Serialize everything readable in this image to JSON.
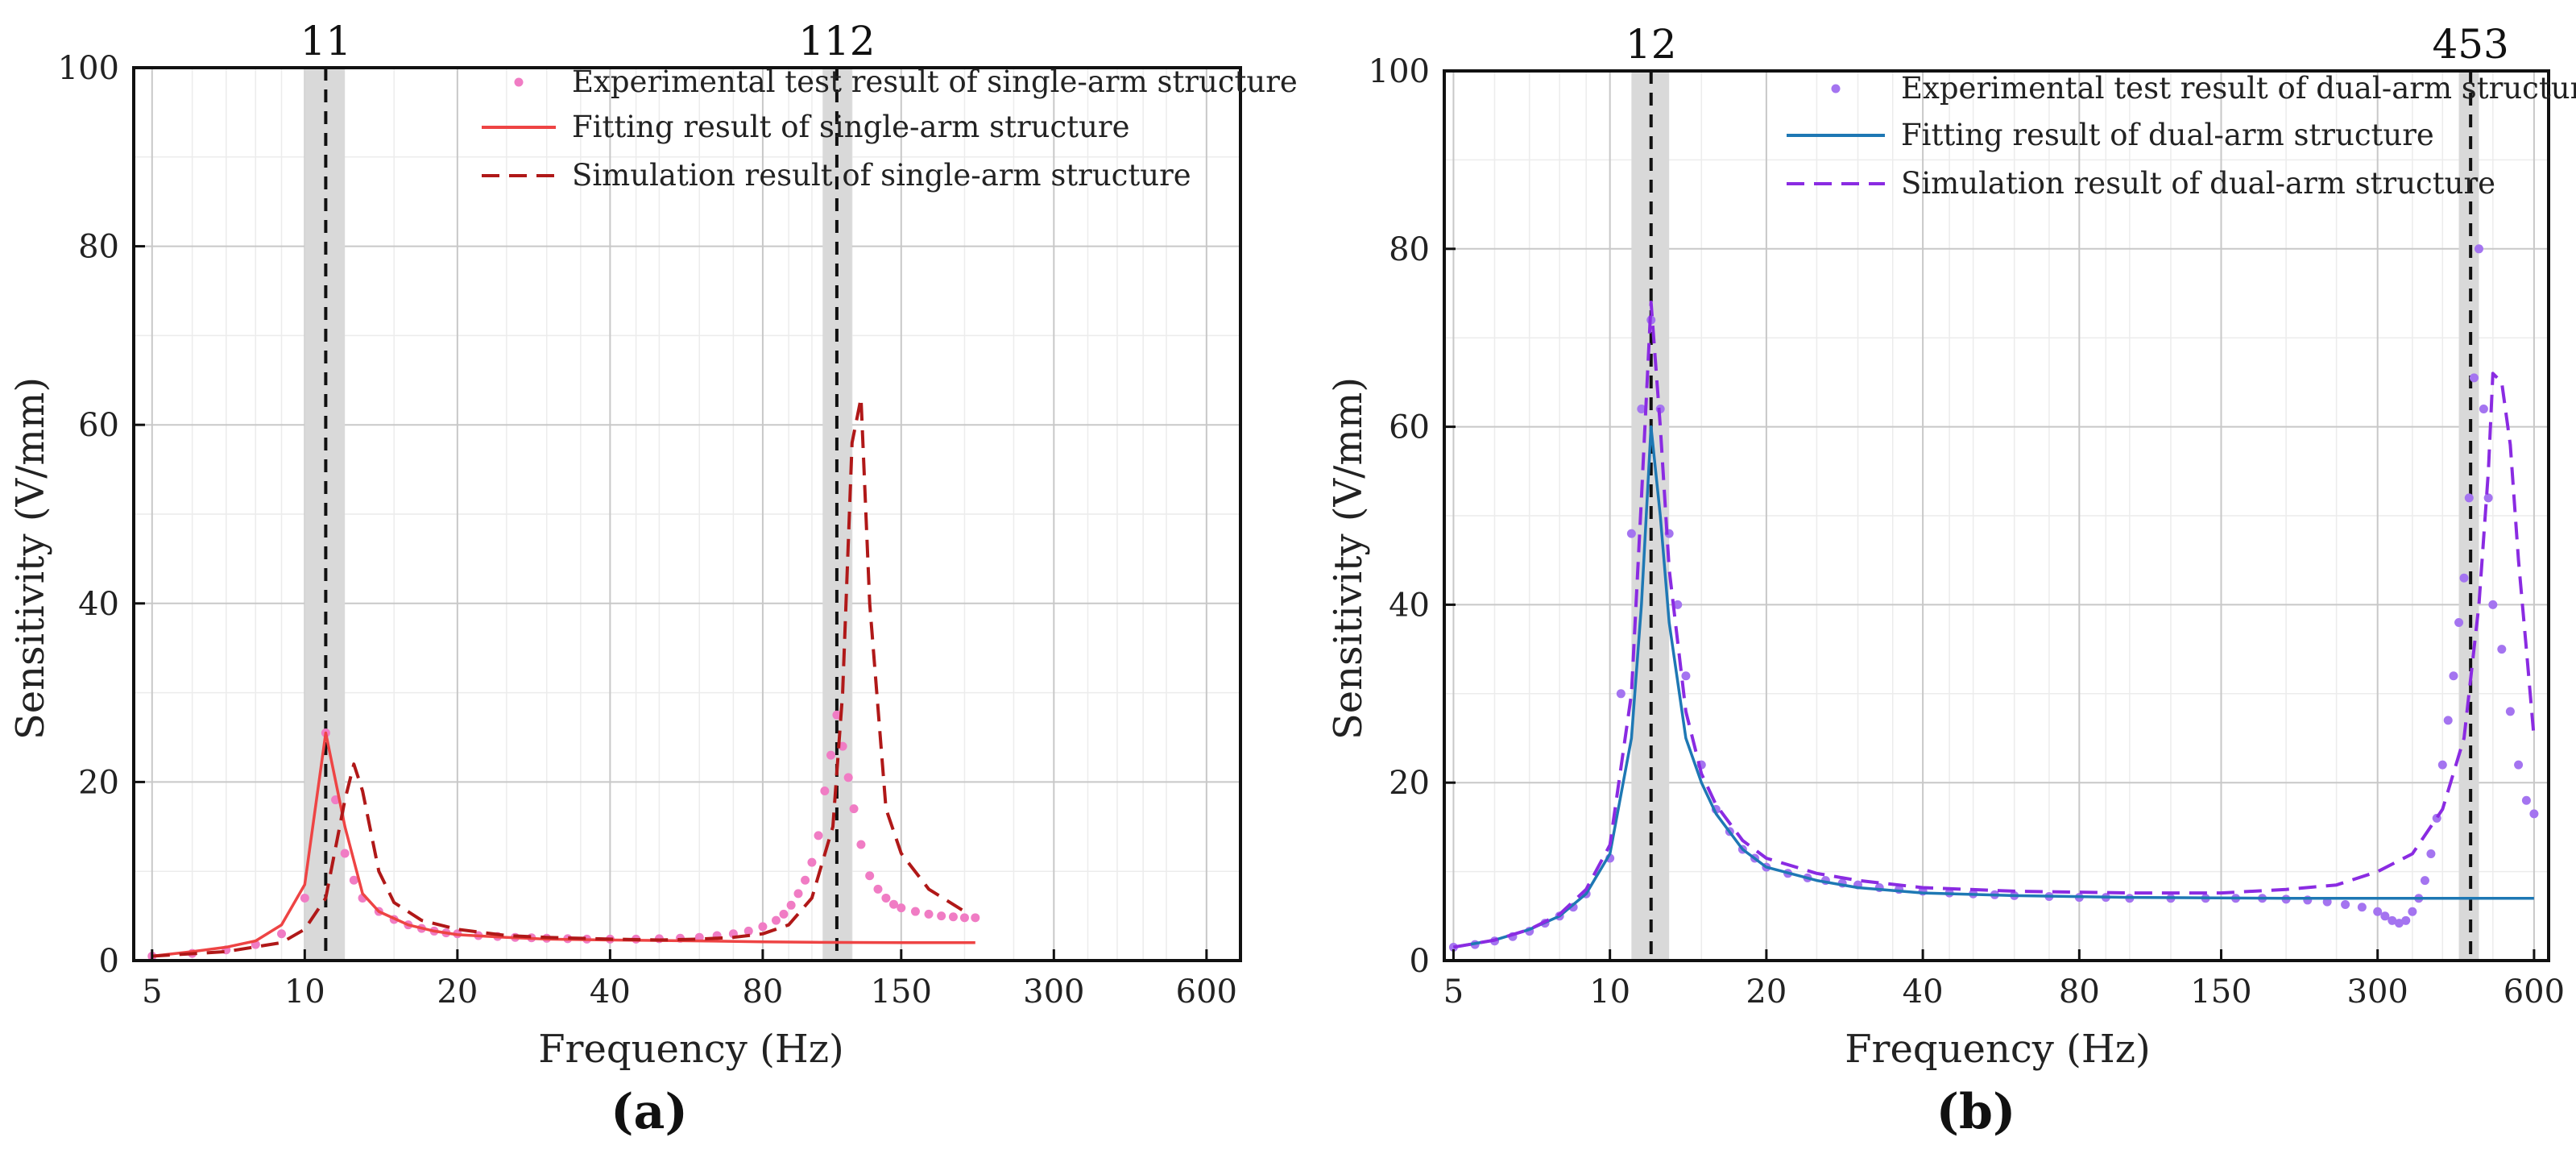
{
  "panels": [
    {
      "panel_label": "(a)",
      "xlabel": "Frequency (Hz)",
      "ylabel": "Sensitivity (V/mm)"
    },
    {
      "panel_label": "(b)",
      "xlabel": "Frequency (Hz)",
      "ylabel": "Sensitivity (V/mm)"
    }
  ],
  "chart_data": [
    {
      "type": "line",
      "panel_label": "(a)",
      "xlabel": "Frequency (Hz)",
      "ylabel": "Sensitivity (V/mm)",
      "x_scale": "log",
      "xlim": [
        4.6,
        700
      ],
      "ylim": [
        0,
        100
      ],
      "x_ticks": [
        5,
        10,
        20,
        40,
        80,
        150,
        300,
        600
      ],
      "y_ticks": [
        0,
        20,
        40,
        60,
        80,
        100
      ],
      "grid": true,
      "legend_position": "top-right",
      "markers": [
        {
          "label": "11",
          "x": 11,
          "band": [
            10,
            12
          ]
        },
        {
          "label": "112",
          "x": 112,
          "band": [
            105,
            120
          ]
        }
      ],
      "series": [
        {
          "name": "Experimental test result of single-arm structure",
          "style": "dots",
          "color": "#f07cc4",
          "x": [
            5,
            6,
            7,
            8,
            9,
            10,
            11,
            11.5,
            12,
            12.5,
            13,
            14,
            15,
            16,
            17,
            18,
            19,
            20,
            22,
            24,
            26,
            28,
            30,
            33,
            36,
            40,
            45,
            50,
            55,
            60,
            65,
            70,
            75,
            80,
            85,
            88,
            91,
            94,
            97,
            100,
            103,
            106,
            109,
            112,
            115,
            118,
            121,
            125,
            130,
            135,
            140,
            145,
            150,
            160,
            170,
            180,
            190,
            200,
            210
          ],
          "y": [
            0.5,
            0.8,
            1.2,
            1.8,
            3,
            7,
            25.5,
            18,
            12,
            9,
            7,
            5.5,
            4.6,
            4,
            3.6,
            3.3,
            3.1,
            3,
            2.8,
            2.7,
            2.6,
            2.55,
            2.5,
            2.45,
            2.4,
            2.4,
            2.4,
            2.45,
            2.5,
            2.6,
            2.8,
            3,
            3.3,
            3.8,
            4.5,
            5.2,
            6.2,
            7.5,
            9,
            11,
            14,
            19,
            23,
            27.5,
            24,
            20.5,
            17,
            13,
            9.5,
            8,
            7,
            6.3,
            5.9,
            5.5,
            5.2,
            5,
            4.9,
            4.8,
            4.8
          ]
        },
        {
          "name": "Fitting result of single-arm structure",
          "style": "solid",
          "color": "#ee4444",
          "x": [
            5,
            6,
            7,
            8,
            9,
            10,
            11,
            12,
            13,
            14,
            16,
            18,
            20,
            25,
            30,
            40,
            60,
            80,
            100,
            150,
            210
          ],
          "y": [
            0.5,
            1,
            1.5,
            2.2,
            4,
            8.5,
            25.5,
            15,
            7.5,
            5.5,
            4,
            3.3,
            2.9,
            2.6,
            2.4,
            2.3,
            2.2,
            2.1,
            2.05,
            2,
            2
          ]
        },
        {
          "name": "Simulation result of single-arm structure",
          "style": "dashed",
          "color": "#b01818",
          "x": [
            5,
            7,
            9,
            10,
            11,
            12,
            12.5,
            13,
            14,
            15,
            17,
            20,
            25,
            30,
            40,
            50,
            60,
            70,
            80,
            90,
            100,
            110,
            115,
            120,
            125,
            130,
            140,
            150,
            170,
            200
          ],
          "y": [
            0.5,
            1,
            2,
            3.5,
            7,
            18,
            22,
            19,
            10,
            6.5,
            4.5,
            3.5,
            2.8,
            2.6,
            2.4,
            2.3,
            2.4,
            2.6,
            3,
            4,
            7,
            15,
            30,
            58,
            63,
            40,
            17,
            12,
            8,
            5.5
          ]
        }
      ]
    },
    {
      "type": "line",
      "panel_label": "(b)",
      "xlabel": "Frequency (Hz)",
      "ylabel": "Sensitivity (V/mm)",
      "x_scale": "log",
      "xlim": [
        4.8,
        640
      ],
      "ylim": [
        0,
        100
      ],
      "x_ticks": [
        5,
        10,
        20,
        40,
        80,
        150,
        300,
        600
      ],
      "y_ticks": [
        0,
        20,
        40,
        60,
        80,
        100
      ],
      "grid": true,
      "legend_position": "top-right",
      "markers": [
        {
          "label": "12",
          "x": 12,
          "band": [
            11,
            13
          ]
        },
        {
          "label": "453",
          "x": 453,
          "band": [
            430,
            470
          ]
        }
      ],
      "series": [
        {
          "name": "Experimental test result of dual-arm structure",
          "style": "dots",
          "color": "#a474f0",
          "x": [
            5,
            5.5,
            6,
            6.5,
            7,
            7.5,
            8,
            8.5,
            9,
            10,
            10.5,
            11,
            11.5,
            12,
            12.5,
            13,
            13.5,
            14,
            15,
            16,
            17,
            18,
            19,
            20,
            22,
            24,
            26,
            28,
            30,
            33,
            36,
            40,
            45,
            50,
            55,
            60,
            70,
            80,
            90,
            100,
            120,
            140,
            160,
            180,
            200,
            220,
            240,
            260,
            280,
            300,
            310,
            320,
            330,
            340,
            350,
            360,
            370,
            380,
            390,
            400,
            410,
            420,
            430,
            440,
            450,
            460,
            470,
            480,
            490,
            500,
            520,
            540,
            560,
            580,
            600
          ],
          "y": [
            1.5,
            1.8,
            2.2,
            2.7,
            3.3,
            4.2,
            5,
            6,
            7.5,
            11.5,
            30,
            48,
            62,
            72,
            62,
            48,
            40,
            32,
            22,
            17,
            14.5,
            12.5,
            11.5,
            10.5,
            9.8,
            9.3,
            9,
            8.7,
            8.5,
            8.2,
            8,
            7.8,
            7.6,
            7.5,
            7.4,
            7.3,
            7.2,
            7.1,
            7.1,
            7,
            7,
            7,
            7,
            7,
            6.9,
            6.8,
            6.6,
            6.3,
            6,
            5.5,
            5,
            4.5,
            4.2,
            4.5,
            5.5,
            7,
            9,
            12,
            16,
            22,
            27,
            32,
            38,
            43,
            52,
            65.5,
            80,
            62,
            52,
            40,
            35,
            28,
            22,
            18,
            16.5
          ]
        },
        {
          "name": "Fitting result of dual-arm structure",
          "style": "solid",
          "color": "#1e78b4",
          "x": [
            5,
            6,
            7,
            8,
            9,
            10,
            11,
            11.5,
            12,
            12.5,
            13,
            14,
            15,
            16,
            18,
            20,
            25,
            30,
            40,
            60,
            100,
            200,
            300,
            400,
            500,
            600
          ],
          "y": [
            1.5,
            2.3,
            3.5,
            5,
            7.5,
            12,
            25,
            40,
            60,
            50,
            38,
            25,
            20,
            16.5,
            12.5,
            10.5,
            9,
            8.2,
            7.6,
            7.3,
            7.1,
            7,
            7,
            7,
            7,
            7
          ]
        },
        {
          "name": "Simulation result of dual-arm structure",
          "style": "dashed",
          "color": "#8a2be2",
          "x": [
            5,
            6,
            7,
            8,
            9,
            10,
            11,
            11.5,
            12,
            12.5,
            13,
            14,
            15,
            16,
            18,
            20,
            25,
            30,
            40,
            60,
            100,
            150,
            200,
            250,
            300,
            350,
            400,
            440,
            470,
            490,
            500,
            520,
            540,
            560,
            580,
            600
          ],
          "y": [
            1.5,
            2.3,
            3.5,
            5.2,
            8,
            13,
            30,
            52,
            74,
            60,
            44,
            28,
            21,
            17.5,
            13.5,
            11.5,
            9.8,
            9,
            8.2,
            7.8,
            7.6,
            7.6,
            8,
            8.5,
            10,
            12,
            17,
            25,
            40,
            55,
            66,
            65,
            58,
            45,
            35,
            25
          ]
        }
      ]
    }
  ]
}
